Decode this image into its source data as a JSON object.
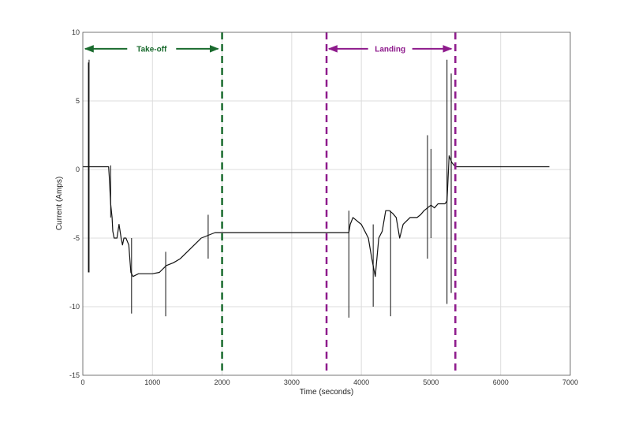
{
  "chart_data": {
    "type": "line",
    "title": "",
    "xlabel": "Time (seconds)",
    "ylabel": "Current (Amps)",
    "xlim": [
      0,
      7000
    ],
    "ylim": [
      -15,
      10
    ],
    "xticks": [
      0,
      1000,
      2000,
      3000,
      4000,
      5000,
      6000,
      7000
    ],
    "yticks": [
      -15,
      -10,
      -5,
      0,
      5,
      10
    ],
    "grid": true,
    "series": [
      {
        "color": "#111111",
        "x": [
          0,
          70,
          80,
          90,
          100,
          350,
          370,
          380,
          400,
          420,
          430,
          450,
          470,
          490,
          520,
          550,
          570,
          590,
          620,
          660,
          690,
          720,
          800,
          900,
          1000,
          1100,
          1200,
          1300,
          1400,
          1500,
          1600,
          1700,
          1800,
          1900,
          2000,
          2100,
          2200,
          2500,
          2800,
          3100,
          3400,
          3700,
          3820,
          3840,
          3880,
          3950,
          4000,
          4050,
          4100,
          4150,
          4200,
          4250,
          4300,
          4350,
          4400,
          4450,
          4500,
          4550,
          4600,
          4700,
          4800,
          4850,
          4900,
          5000,
          5050,
          5100,
          5150,
          5200,
          5230,
          5260,
          5300,
          5350,
          5400,
          5800,
          6200,
          6700
        ],
        "y": [
          0.2,
          0.2,
          0.2,
          0.2,
          0.2,
          0.2,
          0.2,
          -0.5,
          -2.5,
          -3.5,
          -4.5,
          -5,
          -5,
          -5,
          -4,
          -5,
          -5.5,
          -5,
          -5,
          -5.5,
          -7.5,
          -7.8,
          -7.6,
          -7.6,
          -7.6,
          -7.5,
          -7.0,
          -6.8,
          -6.5,
          -6.0,
          -5.5,
          -5.0,
          -4.8,
          -4.6,
          -4.6,
          -4.6,
          -4.6,
          -4.6,
          -4.6,
          -4.6,
          -4.6,
          -4.6,
          -4.6,
          -4.0,
          -3.5,
          -3.8,
          -4.0,
          -4.5,
          -5.0,
          -6.5,
          -7.8,
          -5.0,
          -4.5,
          -3.0,
          -3.0,
          -3.2,
          -3.5,
          -5.0,
          -4.0,
          -3.5,
          -3.5,
          -3.3,
          -3.0,
          -2.6,
          -2.8,
          -2.5,
          -2.5,
          -2.5,
          -2.3,
          1.0,
          0.5,
          0.2,
          0.2,
          0.2,
          0.2,
          0.2
        ]
      },
      {
        "color": "#111111",
        "x": [
          80,
          80,
          90,
          90,
          400,
          400,
          700,
          700,
          1190,
          1190,
          1800,
          1800,
          3820,
          3820,
          4170,
          4170,
          4420,
          4420,
          4950,
          4950,
          5000,
          5000,
          5230,
          5230,
          5290,
          5290
        ],
        "y": [
          7.8,
          -7.5,
          8.0,
          -7.5,
          0.3,
          -3.5,
          -5.0,
          -10.5,
          -6.0,
          -10.7,
          -3.3,
          -6.5,
          -3.0,
          -10.8,
          -4.0,
          -10.0,
          -3.0,
          -10.7,
          2.5,
          -6.5,
          1.5,
          -5.0,
          8.0,
          -9.8,
          7.0,
          -9.0
        ]
      }
    ],
    "annotations": [
      {
        "label": "Take-off",
        "color": "#1a6b2e",
        "x_start": 0,
        "x_end": 2000,
        "y": 8.8,
        "vline_x": 2000
      },
      {
        "label": "Landing",
        "color": "#8e1a8c",
        "x_start": 3500,
        "x_end": 5350,
        "y": 8.8,
        "vline_x": [
          3500,
          5350
        ]
      }
    ]
  }
}
